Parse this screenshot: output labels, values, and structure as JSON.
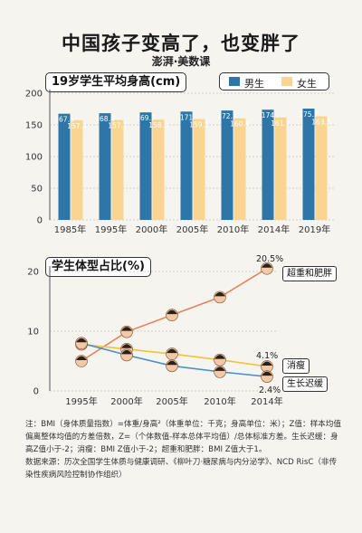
{
  "header": {
    "title": "中国孩子变高了，也变胖了",
    "brand": "澎湃·美数课"
  },
  "colors": {
    "male": "#2e76a7",
    "female": "#f9d591",
    "obese": "#e8835a",
    "thin": "#f0c23e",
    "stunted": "#4a90c8",
    "bg": "#f6f4ef"
  },
  "chart_data": [
    {
      "type": "bar",
      "title": "19岁学生平均身高(cm)",
      "categories": [
        "1985年",
        "1995年",
        "2000年",
        "2005年",
        "2010年",
        "2014年",
        "2019年"
      ],
      "series": [
        {
          "name": "男生",
          "values": [
            167.6,
            168.4,
            169.7,
            171,
            172.7,
            174,
            175.7
          ]
        },
        {
          "name": "女生",
          "values": [
            157.4,
            157.7,
            158.3,
            159.1,
            160.4,
            161.7,
            163.5
          ]
        }
      ],
      "yticks": [
        0,
        50,
        100,
        150,
        200
      ],
      "ylim": [
        0,
        200
      ],
      "legend": "top-right"
    },
    {
      "type": "line",
      "title": "学生体型占比(%)",
      "x": [
        "1995年",
        "2000年",
        "2005年",
        "2010年",
        "2014年"
      ],
      "series": [
        {
          "name": "超重和肥胖",
          "values": [
            5.0,
            9.9,
            12.7,
            15.7,
            20.5
          ]
        },
        {
          "name": "消瘦",
          "values": [
            7.8,
            7.0,
            6.2,
            5.2,
            4.1
          ]
        },
        {
          "name": "生长迟缓",
          "values": [
            8.0,
            6.0,
            4.2,
            3.2,
            2.4
          ]
        }
      ],
      "annotations": {
        "obese_end": "20.5%",
        "thin_end": "4.1%",
        "stunted_end": "2.4%"
      },
      "yticks": [
        0,
        10,
        20
      ],
      "ylim": [
        0,
        21
      ]
    }
  ],
  "notes": {
    "line1": "注：BMI（身体质量指数）=体重/身高²（体重单位：千克；身高单位：米）；Z值：样本均值偏离整体均值的方差倍数，Z=（个体数值-样本总体平均值）/总体标准方差。生长迟缓：身高Z值小于-2；消瘦：BMI Z值小于-2；超重和肥胖：BMI Z值大于1。",
    "line2": "数据来源：历次全国学生体质与健康调研、《柳叶刀·糖尿病与内分泌学》、NCD RisC（非传染性疾病风险控制协作组织）"
  }
}
